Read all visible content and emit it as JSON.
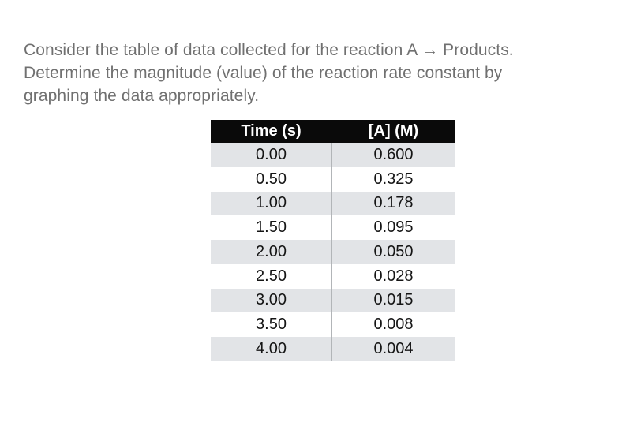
{
  "question": {
    "lines": [
      "Consider the table of data collected for the reaction A → Products.",
      "Determine the magnitude (value) of the reaction rate constant by",
      "graphing the data appropriately."
    ],
    "text_color": "#707070"
  },
  "table": {
    "headers": [
      "Time (s)",
      "[A] (M)"
    ],
    "rows": [
      {
        "time": "0.00",
        "concentration": "0.600"
      },
      {
        "time": "0.50",
        "concentration": "0.325"
      },
      {
        "time": "1.00",
        "concentration": "0.178"
      },
      {
        "time": "1.50",
        "concentration": "0.095"
      },
      {
        "time": "2.00",
        "concentration": "0.050"
      },
      {
        "time": "2.50",
        "concentration": "0.028"
      },
      {
        "time": "3.00",
        "concentration": "0.015"
      },
      {
        "time": "3.50",
        "concentration": "0.008"
      },
      {
        "time": "4.00",
        "concentration": "0.004"
      }
    ],
    "header_bg": "#0a0a0a",
    "header_text_color": "#ffffff",
    "stripe_color": "#e2e4e7",
    "divider_color": "#b2b5b8"
  },
  "chart_data": {
    "type": "table",
    "title": "",
    "columns": [
      "Time (s)",
      "[A] (M)"
    ],
    "time_s": [
      0.0,
      0.5,
      1.0,
      1.5,
      2.0,
      2.5,
      3.0,
      3.5,
      4.0
    ],
    "concentration_M": [
      0.6,
      0.325,
      0.178,
      0.095,
      0.05,
      0.028,
      0.015,
      0.008,
      0.004
    ]
  }
}
